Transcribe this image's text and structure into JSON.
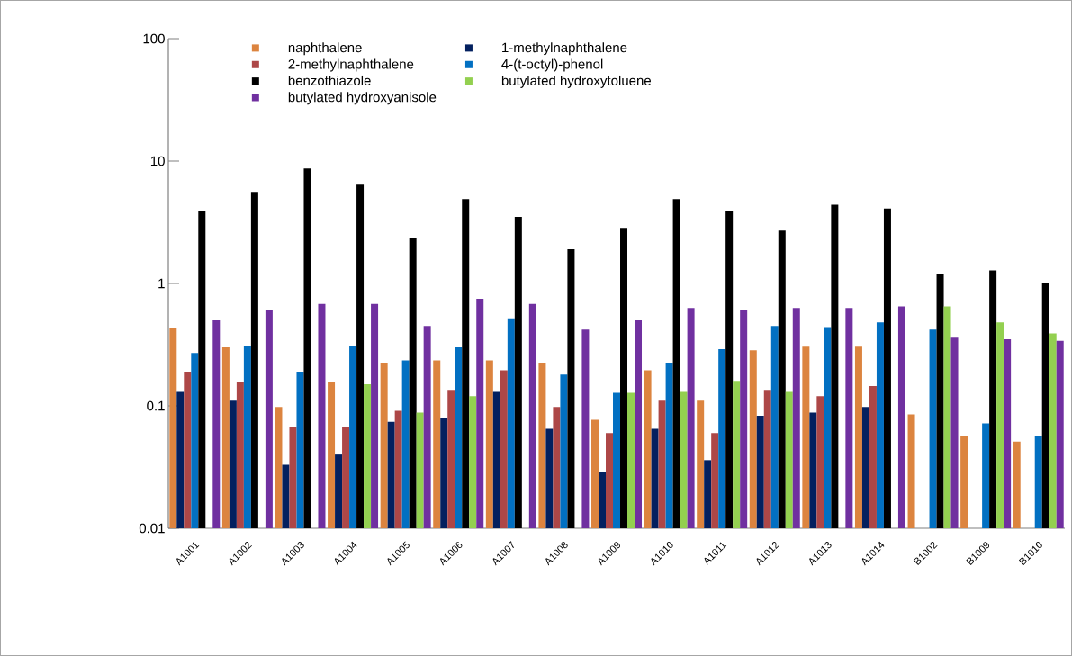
{
  "chart_data": {
    "type": "bar",
    "log": "y",
    "legend": "top left",
    "categories": [
      "A1001",
      "A1002",
      "A1003",
      "A1004",
      "A1005",
      "A1006",
      "A1007",
      "A1008",
      "A1009",
      "A1010",
      "A1011",
      "A1012",
      "A1013",
      "A1014",
      "B1002",
      "B1009",
      "B1010"
    ],
    "ylim": [
      0.01,
      100
    ],
    "yticks": [
      0.01,
      0.1,
      1,
      10,
      100
    ],
    "series": [
      {
        "name": "naphthalene",
        "color": "#dc843f",
        "values": [
          0.43,
          0.3,
          0.098,
          0.155,
          0.225,
          0.235,
          0.235,
          0.225,
          0.077,
          0.195,
          0.11,
          0.285,
          0.305,
          0.305,
          0.085,
          0.057,
          0.051
        ]
      },
      {
        "name": "1-methylnaphthalene",
        "color": "#03205f",
        "values": [
          0.13,
          0.11,
          0.033,
          0.04,
          0.074,
          0.08,
          0.13,
          0.065,
          0.029,
          0.065,
          0.036,
          0.083,
          0.088,
          0.098,
          null,
          null,
          null
        ]
      },
      {
        "name": "2-methylnaphthalene",
        "color": "#ad4747",
        "values": [
          0.19,
          0.155,
          0.067,
          0.067,
          0.091,
          0.135,
          0.195,
          0.098,
          0.06,
          0.11,
          0.06,
          0.135,
          0.12,
          0.145,
          null,
          null,
          null
        ]
      },
      {
        "name": "4-(t-octyl)-phenol",
        "color": "#0270c2",
        "values": [
          0.27,
          0.31,
          0.19,
          0.31,
          0.235,
          0.3,
          0.52,
          0.18,
          0.128,
          0.225,
          0.29,
          0.45,
          0.44,
          0.48,
          0.42,
          0.072,
          0.057
        ]
      },
      {
        "name": "benzothiazole",
        "color": "#000000",
        "values": [
          3.9,
          5.6,
          8.7,
          6.4,
          2.35,
          4.9,
          3.5,
          1.9,
          2.85,
          4.9,
          3.9,
          2.7,
          4.4,
          4.1,
          1.2,
          1.28,
          1.0
        ]
      },
      {
        "name": "butylated hydroxytoluene",
        "color": "#93d050",
        "values": [
          null,
          null,
          null,
          0.15,
          0.088,
          0.12,
          null,
          null,
          0.128,
          0.13,
          0.16,
          0.13,
          null,
          null,
          0.65,
          0.48,
          0.39
        ]
      },
      {
        "name": "butylated hydroxyanisole",
        "color": "#7030a0",
        "values": [
          0.5,
          0.61,
          0.68,
          0.68,
          0.45,
          0.75,
          0.68,
          0.42,
          0.5,
          0.63,
          0.61,
          0.63,
          0.63,
          0.65,
          0.36,
          0.35,
          0.34
        ]
      }
    ]
  }
}
